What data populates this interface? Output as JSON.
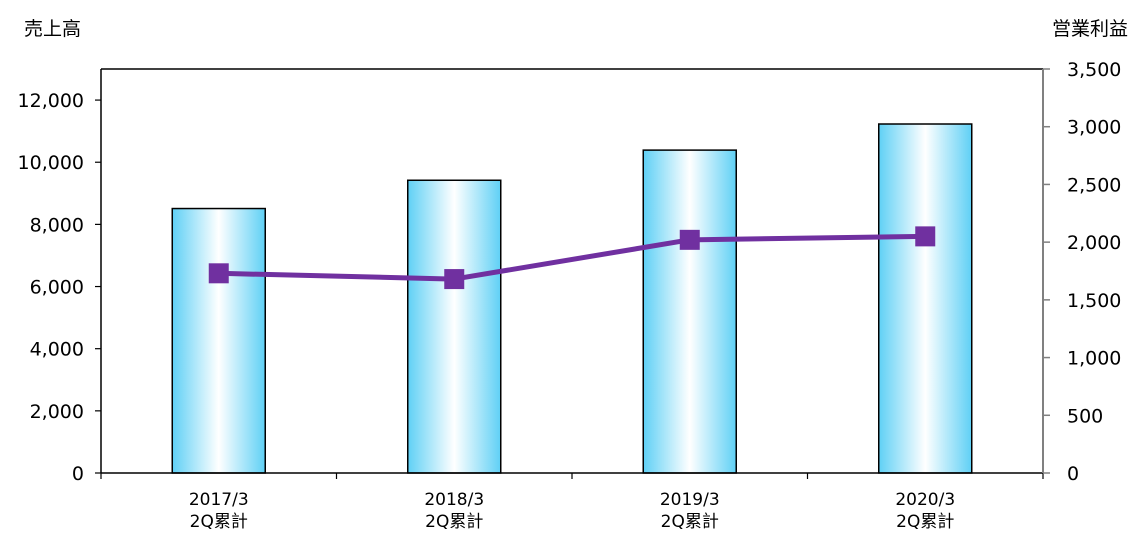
{
  "chart_data": {
    "type": "bar",
    "categories": [
      [
        "2017/3",
        "2Q累計"
      ],
      [
        "2018/3",
        "2Q累計"
      ],
      [
        "2019/3",
        "2Q累計"
      ],
      [
        "2020/3",
        "2Q累計"
      ]
    ],
    "ylabel_left": "売上高",
    "ylabel_right": "営業利益",
    "ylim_left": [
      0,
      13000
    ],
    "ylim_right": [
      0,
      3500
    ],
    "yticks_left": [
      "0",
      "2,000",
      "4,000",
      "6,000",
      "8,000",
      "10,000",
      "12,000"
    ],
    "yticks_right": [
      "0",
      "500",
      "1,000",
      "1,500",
      "2,000",
      "2,500",
      "3,000",
      "3,500"
    ],
    "series": [
      {
        "type": "bar",
        "axis": "left",
        "values": [
          8510,
          9420,
          10390,
          11230
        ]
      },
      {
        "type": "line",
        "axis": "right",
        "values": [
          1730,
          1680,
          2020,
          2050
        ]
      }
    ],
    "colors": {
      "bar_edge": "#5fd0f5",
      "bar_center": "#ffffff",
      "line": "#7030a0",
      "axis": "#000000",
      "right_axis": "#808080"
    }
  }
}
